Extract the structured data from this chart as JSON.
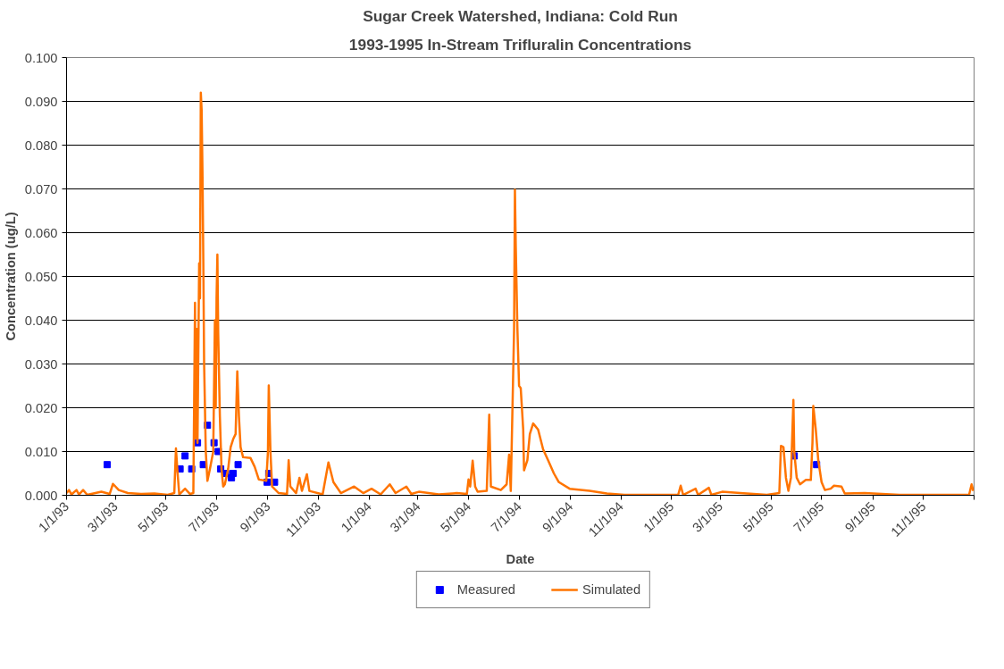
{
  "chart_data": {
    "type": "line",
    "title": "Sugar Creek Watershed, Indiana: Cold Run",
    "subtitle": "1993-1995 In-Stream Trifluralin Concentrations",
    "xlabel": "Date",
    "ylabel": "Concentration (ug/L)",
    "xlim": [
      "1993-01-01",
      "1996-01-01"
    ],
    "xticks": [
      {
        "value": "1993-01-01",
        "label": "1/1/93"
      },
      {
        "value": "1993-03-01",
        "label": "3/1/93"
      },
      {
        "value": "1993-05-01",
        "label": "5/1/93"
      },
      {
        "value": "1993-07-01",
        "label": "7/1/93"
      },
      {
        "value": "1993-09-01",
        "label": "9/1/93"
      },
      {
        "value": "1993-11-01",
        "label": "11/1/93"
      },
      {
        "value": "1994-01-01",
        "label": "1/1/94"
      },
      {
        "value": "1994-03-01",
        "label": "3/1/94"
      },
      {
        "value": "1994-05-01",
        "label": "5/1/94"
      },
      {
        "value": "1994-07-01",
        "label": "7/1/94"
      },
      {
        "value": "1994-09-01",
        "label": "9/1/94"
      },
      {
        "value": "1994-11-01",
        "label": "11/1/94"
      },
      {
        "value": "1995-01-01",
        "label": "1/1/95"
      },
      {
        "value": "1995-03-01",
        "label": "3/1/95"
      },
      {
        "value": "1995-05-01",
        "label": "5/1/95"
      },
      {
        "value": "1995-07-01",
        "label": "7/1/95"
      },
      {
        "value": "1995-09-01",
        "label": "9/1/95"
      },
      {
        "value": "1995-11-01",
        "label": "11/1/95"
      },
      {
        "value": "1996-01-01",
        "label": null
      }
    ],
    "ylim": [
      0,
      0.1
    ],
    "yticks": [
      {
        "value": 0,
        "label": "0.000"
      },
      {
        "value": 0.01,
        "label": "0.010"
      },
      {
        "value": 0.02,
        "label": "0.020"
      },
      {
        "value": 0.03,
        "label": "0.030"
      },
      {
        "value": 0.04,
        "label": "0.040"
      },
      {
        "value": 0.05,
        "label": "0.050"
      },
      {
        "value": 0.06,
        "label": "0.060"
      },
      {
        "value": 0.07,
        "label": "0.070"
      },
      {
        "value": 0.08,
        "label": "0.080"
      },
      {
        "value": 0.09,
        "label": "0.090"
      },
      {
        "value": 0.1,
        "label": "0.100"
      }
    ],
    "grid": "y",
    "legend": "bottom",
    "series": [
      {
        "name": "Measured",
        "type": "scatter",
        "marker": "square",
        "color": "#0000ff",
        "x": [
          "1993-02-19",
          "1993-05-18",
          "1993-05-24",
          "1993-06-01",
          "1993-06-08",
          "1993-06-15",
          "1993-06-20",
          "1993-06-28",
          "1993-07-03",
          "1993-07-06",
          "1993-07-12",
          "1993-07-19",
          "1993-07-21",
          "1993-07-27",
          "1993-08-31",
          "1993-09-02",
          "1993-09-09",
          "1995-05-29",
          "1995-06-25"
        ],
        "values": [
          0.007,
          0.006,
          0.009,
          0.006,
          0.012,
          0.007,
          0.016,
          0.012,
          0.01,
          0.006,
          0.005,
          0.004,
          0.005,
          0.007,
          0.003,
          0.005,
          0.003,
          0.009,
          0.007
        ]
      },
      {
        "name": "Simulated",
        "type": "line",
        "marker": "none",
        "line_style": "solid",
        "color": "#ff7400",
        "x": [
          "1993-01-01",
          "1993-01-04",
          "1993-01-07",
          "1993-01-13",
          "1993-01-16",
          "1993-01-21",
          "1993-01-26",
          "1993-02-12",
          "1993-02-22",
          "1993-02-26",
          "1993-03-05",
          "1993-03-16",
          "1993-04-01",
          "1993-04-17",
          "1993-05-03",
          "1993-05-11",
          "1993-05-13",
          "1993-05-15",
          "1993-05-17",
          "1993-05-24",
          "1993-05-30",
          "1993-06-03",
          "1993-06-04",
          "1993-06-05",
          "1993-06-06",
          "1993-06-07",
          "1993-06-08",
          "1993-06-10",
          "1993-06-11",
          "1993-06-12",
          "1993-06-13",
          "1993-06-14",
          "1993-06-15",
          "1993-06-16",
          "1993-06-18",
          "1993-06-20",
          "1993-06-23",
          "1993-06-27",
          "1993-06-29",
          "1993-06-30",
          "1993-07-01",
          "1993-07-02",
          "1993-07-03",
          "1993-07-05",
          "1993-07-07",
          "1993-07-09",
          "1993-07-11",
          "1993-07-15",
          "1993-07-18",
          "1993-07-21",
          "1993-07-24",
          "1993-07-26",
          "1993-07-28",
          "1993-07-30",
          "1993-08-02",
          "1993-08-11",
          "1993-08-16",
          "1993-08-21",
          "1993-08-30",
          "1993-09-01",
          "1993-09-02",
          "1993-09-04",
          "1993-09-06",
          "1993-09-14",
          "1993-09-24",
          "1993-09-26",
          "1993-09-28",
          "1993-10-05",
          "1993-10-09",
          "1993-10-12",
          "1993-10-18",
          "1993-10-21",
          "1993-11-06",
          "1993-11-13",
          "1993-11-19",
          "1993-11-28",
          "1993-12-14",
          "1993-12-25",
          "1994-01-04",
          "1994-01-15",
          "1994-01-26",
          "1994-02-02",
          "1994-02-15",
          "1994-02-21",
          "1994-03-02",
          "1994-03-26",
          "1994-04-17",
          "1994-04-29",
          "1994-05-01",
          "1994-05-03",
          "1994-05-06",
          "1994-05-09",
          "1994-05-12",
          "1994-05-23",
          "1994-05-26",
          "1994-05-28",
          "1994-06-09",
          "1994-06-16",
          "1994-06-19",
          "1994-06-21",
          "1994-06-25",
          "1994-06-26",
          "1994-06-27",
          "1994-06-29",
          "1994-07-01",
          "1994-07-03",
          "1994-07-06",
          "1994-07-07",
          "1994-07-11",
          "1994-07-14",
          "1994-07-18",
          "1994-07-24",
          "1994-07-30",
          "1994-08-05",
          "1994-08-12",
          "1994-08-18",
          "1994-08-31",
          "1994-09-24",
          "1994-10-15",
          "1994-11-05",
          "1995-01-09",
          "1995-01-12",
          "1995-01-15",
          "1995-01-30",
          "1995-02-02",
          "1995-02-15",
          "1995-02-18",
          "1995-03-03",
          "1995-03-25",
          "1995-04-26",
          "1995-05-11",
          "1995-05-13",
          "1995-05-16",
          "1995-05-19",
          "1995-05-22",
          "1995-05-25",
          "1995-05-28",
          "1995-05-29",
          "1995-06-01",
          "1995-06-05",
          "1995-06-12",
          "1995-06-18",
          "1995-06-20",
          "1995-06-21",
          "1995-06-24",
          "1995-06-27",
          "1995-07-01",
          "1995-07-05",
          "1995-07-12",
          "1995-07-16",
          "1995-07-25",
          "1995-07-29",
          "1995-08-22",
          "1995-09-12",
          "1995-10-03",
          "1995-12-26",
          "1995-12-29",
          "1995-12-31"
        ],
        "values": [
          0.0005,
          0.0012,
          0.0002,
          0.0012,
          0.0002,
          0.0012,
          0.0001,
          0.0008,
          0.0003,
          0.0026,
          0.0012,
          0.0005,
          0.0003,
          0.0004,
          0.0001,
          0.0005,
          0.0107,
          0.005,
          0.0002,
          0.0015,
          0.0003,
          0.0005,
          0.022,
          0.044,
          0.013,
          0.038,
          0.012,
          0.053,
          0.045,
          0.092,
          0.088,
          0.074,
          0.054,
          0.03,
          0.01,
          0.0033,
          0.006,
          0.01,
          0.04,
          0.02,
          0.045,
          0.055,
          0.037,
          0.018,
          0.006,
          0.002,
          0.0025,
          0.006,
          0.011,
          0.0128,
          0.014,
          0.0283,
          0.018,
          0.011,
          0.0087,
          0.0085,
          0.0065,
          0.0036,
          0.0033,
          0.01,
          0.0251,
          0.01,
          0.002,
          0.0005,
          0.0003,
          0.008,
          0.002,
          0.0005,
          0.004,
          0.001,
          0.0048,
          0.001,
          0.0002,
          0.0075,
          0.003,
          0.0005,
          0.002,
          0.0005,
          0.0015,
          0.0002,
          0.0025,
          0.0005,
          0.002,
          0.0003,
          0.0008,
          0.0002,
          0.0005,
          0.0003,
          0.0036,
          0.002,
          0.0079,
          0.002,
          0.0008,
          0.001,
          0.0184,
          0.002,
          0.0012,
          0.0025,
          0.0093,
          0.001,
          0.038,
          0.0698,
          0.057,
          0.038,
          0.025,
          0.0245,
          0.015,
          0.0057,
          0.008,
          0.014,
          0.0164,
          0.015,
          0.0105,
          0.008,
          0.005,
          0.003,
          0.0015,
          0.001,
          0.0004,
          0.0001,
          0.0001,
          0.0022,
          0.0001,
          0.0015,
          0.0001,
          0.0017,
          0.0001,
          0.0008,
          0.0005,
          0.0001,
          0.0005,
          0.0113,
          0.011,
          0.004,
          0.001,
          0.004,
          0.0218,
          0.01,
          0.004,
          0.0025,
          0.0035,
          0.0035,
          0.012,
          0.0204,
          0.015,
          0.008,
          0.003,
          0.0012,
          0.0015,
          0.0022,
          0.002,
          0.0004,
          0.0005,
          0.0003,
          0.0001,
          0.0001,
          0.0025,
          0.001
        ]
      }
    ]
  }
}
